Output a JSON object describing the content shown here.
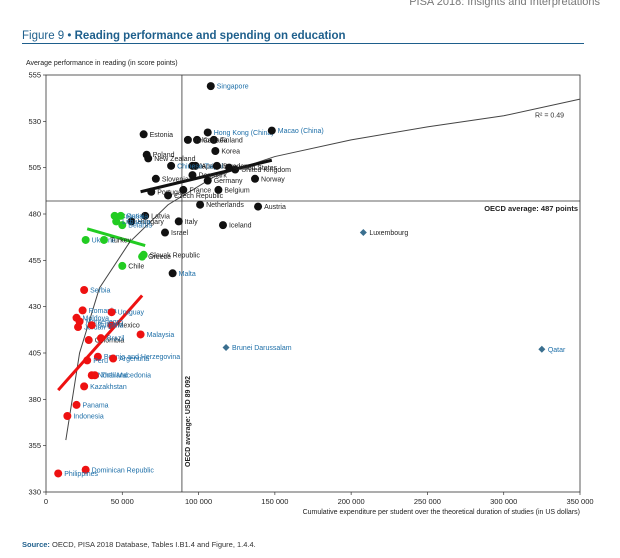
{
  "header": {
    "top_note": "PISA 2018: Insights and Interpretations",
    "figure_number": "Figure 9",
    "figure_title": "Reading performance and spending on education"
  },
  "source": {
    "label": "Source:",
    "text": "OECD, PISA 2018 Database, Tables I.B1.4 and Figure, 1.4.4."
  },
  "chart_data": {
    "type": "scatter",
    "xlabel": "Cumulative expenditure per student over the theoretical duration of studies (in US dollars)",
    "ylabel": "Average performance in reading (in score points)",
    "xlim": [
      0,
      350000
    ],
    "ylim": [
      330,
      555
    ],
    "xticks": [
      0,
      50000,
      100000,
      150000,
      200000,
      250000,
      300000,
      350000
    ],
    "xtick_labels": [
      "0",
      "50 000",
      "100 000",
      "150 000",
      "200 000",
      "250 000",
      "300 000",
      "350 000"
    ],
    "yticks": [
      330,
      355,
      380,
      405,
      430,
      455,
      480,
      505,
      530,
      555
    ],
    "grid": false,
    "oecd_average_reading": {
      "value": 487,
      "label": "OECD average: 487 points"
    },
    "oecd_average_spending": {
      "value": 89092,
      "label": "OECD average: USD 89 092"
    },
    "r2_label": "R² = 0.49",
    "colors": {
      "black": "#111111",
      "green": "#22cc22",
      "red": "#ee1111",
      "diamond": "#3a6f8f",
      "blue_label": "#1e6fa8",
      "trend": "#444444"
    },
    "points": [
      {
        "label": "Singapore",
        "x": 108000,
        "y": 549,
        "group": "black",
        "label_color": "blue"
      },
      {
        "label": "Hong Kong (China)",
        "x": 106000,
        "y": 524,
        "group": "black",
        "label_color": "blue"
      },
      {
        "label": "Macao (China)",
        "x": 148000,
        "y": 525,
        "group": "black",
        "label_color": "blue"
      },
      {
        "label": "Estonia",
        "x": 64000,
        "y": 523,
        "group": "black",
        "label_color": "black"
      },
      {
        "label": "Canada",
        "x": 99000,
        "y": 520,
        "group": "black",
        "label_color": "black"
      },
      {
        "label": "Finland",
        "x": 110000,
        "y": 520,
        "group": "black",
        "label_color": "black"
      },
      {
        "label": "Ireland",
        "x": 93000,
        "y": 520,
        "group": "black",
        "label_color": "black"
      },
      {
        "label": "Korea",
        "x": 111000,
        "y": 514,
        "group": "black",
        "label_color": "black"
      },
      {
        "label": "United Kingdom",
        "x": 124000,
        "y": 504,
        "group": "black",
        "label_color": "black"
      },
      {
        "label": "New Zealand",
        "x": 67000,
        "y": 510,
        "group": "black",
        "label_color": "black"
      },
      {
        "label": "Poland",
        "x": 66000,
        "y": 512,
        "group": "black",
        "label_color": "black"
      },
      {
        "label": "Australia",
        "x": 98000,
        "y": 506,
        "group": "black",
        "label_color": "black"
      },
      {
        "label": "Japan",
        "x": 96000,
        "y": 506,
        "group": "black",
        "label_color": "black"
      },
      {
        "label": "Chinese Taipei",
        "x": 82000,
        "y": 506,
        "group": "black",
        "label_color": "blue"
      },
      {
        "label": "Sweden",
        "x": 112000,
        "y": 506,
        "group": "black",
        "label_color": "black"
      },
      {
        "label": "United States",
        "x": 120000,
        "y": 505,
        "group": "black",
        "label_color": "black"
      },
      {
        "label": "Slovenia",
        "x": 72000,
        "y": 499,
        "group": "black",
        "label_color": "black"
      },
      {
        "label": "Denmark",
        "x": 96000,
        "y": 501,
        "group": "black",
        "label_color": "black"
      },
      {
        "label": "Germany",
        "x": 106000,
        "y": 498,
        "group": "black",
        "label_color": "black"
      },
      {
        "label": "Norway",
        "x": 137000,
        "y": 499,
        "group": "black",
        "label_color": "black"
      },
      {
        "label": "Portugal",
        "x": 69000,
        "y": 492,
        "group": "black",
        "label_color": "black"
      },
      {
        "label": "France",
        "x": 90000,
        "y": 493,
        "group": "black",
        "label_color": "black"
      },
      {
        "label": "Belgium",
        "x": 113000,
        "y": 493,
        "group": "black",
        "label_color": "black"
      },
      {
        "label": "Czech Republic",
        "x": 80000,
        "y": 490,
        "group": "black",
        "label_color": "black"
      },
      {
        "label": "Latvia",
        "x": 65000,
        "y": 479,
        "group": "black",
        "label_color": "black"
      },
      {
        "label": "Netherlands",
        "x": 101000,
        "y": 485,
        "group": "black",
        "label_color": "black"
      },
      {
        "label": "Austria",
        "x": 139000,
        "y": 484,
        "group": "black",
        "label_color": "black"
      },
      {
        "label": "Iceland",
        "x": 116000,
        "y": 474,
        "group": "black",
        "label_color": "black"
      },
      {
        "label": "Italy",
        "x": 87000,
        "y": 476,
        "group": "black",
        "label_color": "black"
      },
      {
        "label": "Hungary",
        "x": 56000,
        "y": 476,
        "group": "black",
        "label_color": "black"
      },
      {
        "label": "Israel",
        "x": 78000,
        "y": 470,
        "group": "black",
        "label_color": "black"
      },
      {
        "label": "Malta",
        "x": 83000,
        "y": 448,
        "group": "black",
        "label_color": "blue"
      },
      {
        "label": "Croatia",
        "x": 45000,
        "y": 479,
        "group": "green",
        "label_color": "blue"
      },
      {
        "label": "Russia",
        "x": 49000,
        "y": 479,
        "group": "green",
        "label_color": "blue"
      },
      {
        "label": "Belarus",
        "x": 50000,
        "y": 474,
        "group": "green",
        "label_color": "blue"
      },
      {
        "label": "Lithuania",
        "x": 46000,
        "y": 476,
        "group": "green",
        "label_color": "blue"
      },
      {
        "label": "Ukraine",
        "x": 26000,
        "y": 466,
        "group": "green",
        "label_color": "blue"
      },
      {
        "label": "Turkey",
        "x": 38000,
        "y": 466,
        "group": "green",
        "label_color": "black"
      },
      {
        "label": "Chile",
        "x": 50000,
        "y": 452,
        "group": "green",
        "label_color": "black"
      },
      {
        "label": "Slovak Republic",
        "x": 64000,
        "y": 458,
        "group": "green",
        "label_color": "black"
      },
      {
        "label": "Greece",
        "x": 63000,
        "y": 457,
        "group": "green",
        "label_color": "black"
      },
      {
        "label": "Serbia",
        "x": 25000,
        "y": 439,
        "group": "red",
        "label_color": "blue"
      },
      {
        "label": "Romania",
        "x": 24000,
        "y": 428,
        "group": "red",
        "label_color": "blue"
      },
      {
        "label": "Mexico",
        "x": 43000,
        "y": 420,
        "group": "red",
        "label_color": "black"
      },
      {
        "label": "Moldova",
        "x": 20000,
        "y": 424,
        "group": "red",
        "label_color": "blue"
      },
      {
        "label": "Montenegro",
        "x": 22000,
        "y": 422,
        "group": "red",
        "label_color": "blue"
      },
      {
        "label": "Jordan",
        "x": 21000,
        "y": 419,
        "group": "red",
        "label_color": "blue"
      },
      {
        "label": "Uruguay",
        "x": 43000,
        "y": 427,
        "group": "red",
        "label_color": "blue"
      },
      {
        "label": "Bulgaria",
        "x": 30000,
        "y": 420,
        "group": "red",
        "label_color": "blue"
      },
      {
        "label": "Malaysia",
        "x": 62000,
        "y": 415,
        "group": "red",
        "label_color": "blue"
      },
      {
        "label": "Colombia",
        "x": 28000,
        "y": 412,
        "group": "red",
        "label_color": "black"
      },
      {
        "label": "Brazil",
        "x": 36000,
        "y": 413,
        "group": "red",
        "label_color": "blue"
      },
      {
        "label": "Bosnia and Herzegovina",
        "x": 34000,
        "y": 403,
        "group": "red",
        "label_color": "blue"
      },
      {
        "label": "Peru",
        "x": 27000,
        "y": 401,
        "group": "red",
        "label_color": "blue"
      },
      {
        "label": "Argentina",
        "x": 44000,
        "y": 402,
        "group": "red",
        "label_color": "blue"
      },
      {
        "label": "North Macedonia",
        "x": 30000,
        "y": 393,
        "group": "red",
        "label_color": "blue"
      },
      {
        "label": "Thailand",
        "x": 32000,
        "y": 393,
        "group": "red",
        "label_color": "blue"
      },
      {
        "label": "Kazakhstan",
        "x": 25000,
        "y": 387,
        "group": "red",
        "label_color": "blue"
      },
      {
        "label": "Panama",
        "x": 20000,
        "y": 377,
        "group": "red",
        "label_color": "blue"
      },
      {
        "label": "Indonesia",
        "x": 14000,
        "y": 371,
        "group": "red",
        "label_color": "blue"
      },
      {
        "label": "Dominican Republic",
        "x": 26000,
        "y": 342,
        "group": "red",
        "label_color": "blue"
      },
      {
        "label": "Philippines",
        "x": 8000,
        "y": 340,
        "group": "red",
        "label_color": "blue"
      },
      {
        "label": "Luxembourg",
        "x": 208000,
        "y": 470,
        "group": "diamond",
        "label_color": "black"
      },
      {
        "label": "Brunei Darussalam",
        "x": 118000,
        "y": 408,
        "group": "diamond",
        "label_color": "blue"
      },
      {
        "label": "Qatar",
        "x": 325000,
        "y": 407,
        "group": "diamond",
        "label_color": "blue"
      }
    ],
    "trend_lines": [
      {
        "name": "high",
        "color": "black",
        "from": [
          62000,
          492
        ],
        "to": [
          148000,
          509
        ]
      },
      {
        "name": "middle",
        "color": "green",
        "from": [
          27000,
          472
        ],
        "to": [
          65000,
          463
        ]
      },
      {
        "name": "low",
        "color": "red",
        "from": [
          8000,
          385
        ],
        "to": [
          63000,
          436
        ]
      }
    ],
    "curve_points": [
      [
        13000,
        358
      ],
      [
        22000,
        405
      ],
      [
        35000,
        440
      ],
      [
        55000,
        465
      ],
      [
        80000,
        485
      ],
      [
        110000,
        500
      ],
      [
        150000,
        511
      ],
      [
        200000,
        520
      ],
      [
        250000,
        527
      ],
      [
        300000,
        533
      ],
      [
        350000,
        542
      ]
    ]
  }
}
